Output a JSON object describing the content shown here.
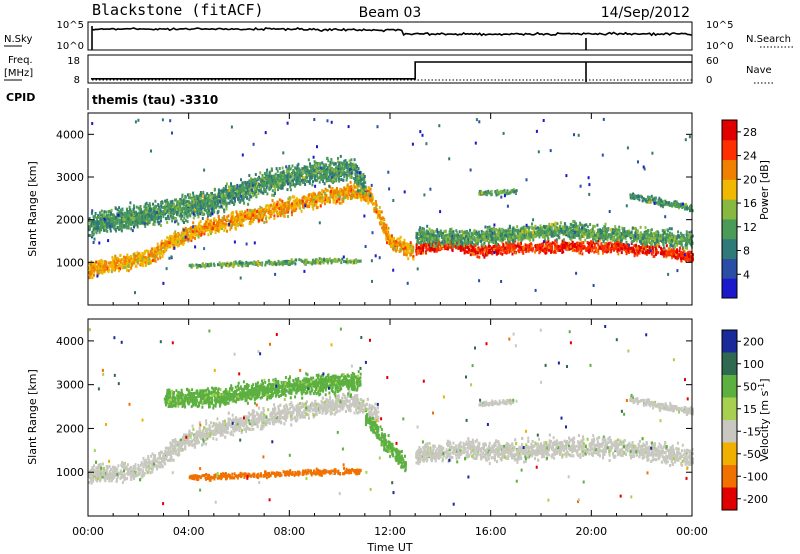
{
  "header": {
    "station": "Blackstone (fitACF)",
    "beam": "Beam 03",
    "date": "14/Sep/2012"
  },
  "top_panel": {
    "nsky_label": "N.Sky",
    "nsky_ticks": [
      "10^5",
      "10^0"
    ],
    "nsearch_label": "N.Search",
    "nsearch_ticks": [
      "10^5",
      "10^0"
    ],
    "freq_label": "Freq.",
    "freq_unit": "[MHz]",
    "freq_ticks": [
      "18",
      "8"
    ],
    "nave_label": "Nave",
    "nave_ticks": [
      "60",
      "0"
    ],
    "cpid_label": "CPID",
    "cpid_value": "themis (tau) -3310",
    "frequency_step_time_hours": 13.0,
    "frequency_before_mhz": 9.5,
    "frequency_after_mhz": 15.5
  },
  "x_axis": {
    "label": "Time UT",
    "ticks": [
      "00:00",
      "04:00",
      "08:00",
      "12:00",
      "16:00",
      "20:00",
      "00:00"
    ],
    "range_hours": [
      0,
      24
    ]
  },
  "chart_data": [
    {
      "type": "heatmap",
      "name": "power",
      "ylabel": "Slant Range [km]",
      "ylim": [
        0,
        4500
      ],
      "yticks": [
        "1000",
        "2000",
        "3000",
        "4000"
      ],
      "xlim_hours": [
        0,
        24
      ],
      "colorbar": {
        "label": "Power [dB]",
        "ticks": [
          "4",
          "8",
          "12",
          "16",
          "20",
          "24",
          "28"
        ],
        "range": [
          0,
          30
        ]
      },
      "bands": [
        {
          "t": [
            0,
            0.3,
            2.5,
            3.2,
            4.2,
            5.0,
            8.0,
            10.5,
            11.2,
            12.0,
            12.9
          ],
          "r": [
            850,
            900,
            1150,
            1500,
            1750,
            1900,
            2350,
            2700,
            2600,
            1500,
            1300
          ],
          "spread": 260,
          "level": 20
        },
        {
          "t": [
            0,
            2.0,
            4.0,
            5.0,
            7.0,
            9.0,
            10.5,
            11.0
          ],
          "r": [
            1900,
            2100,
            2350,
            2450,
            2900,
            3150,
            3200,
            2800
          ],
          "spread": 380,
          "level": 11
        },
        {
          "t": [
            4.0,
            6.0,
            8.0,
            10.0,
            10.8
          ],
          "r": [
            950,
            1000,
            1030,
            1080,
            1050
          ],
          "spread": 80,
          "level": 13
        },
        {
          "t": [
            13.0,
            14.5,
            15.5,
            17.0,
            19.0,
            21.0,
            23.0,
            24.0
          ],
          "r": [
            1350,
            1450,
            1280,
            1380,
            1400,
            1380,
            1280,
            1150
          ],
          "spread": 190,
          "level": 26
        },
        {
          "t": [
            13.0,
            15.0,
            17.0,
            19.0,
            21.0,
            23.0,
            24.0
          ],
          "r": [
            1650,
            1600,
            1700,
            1780,
            1700,
            1600,
            1550
          ],
          "spread": 270,
          "level": 12
        },
        {
          "t": [
            15.5,
            17.0
          ],
          "r": [
            2650,
            2700
          ],
          "spread": 80,
          "level": 12
        },
        {
          "t": [
            21.5,
            24.0
          ],
          "r": [
            2600,
            2300
          ],
          "spread": 120,
          "level": 11
        }
      ]
    },
    {
      "type": "heatmap",
      "name": "velocity",
      "ylabel": "Slant Range [km]",
      "ylim": [
        0,
        4500
      ],
      "yticks": [
        "1000",
        "2000",
        "3000",
        "4000"
      ],
      "xlim_hours": [
        0,
        24
      ],
      "colorbar": {
        "label": "Velocity [m s^-1]",
        "ticks": [
          "200",
          "100",
          "50",
          "15",
          "-15",
          "-50",
          "-100",
          "-200"
        ]
      },
      "bands": [
        {
          "t": [
            0,
            2.0,
            3.0,
            4.0,
            5.0,
            8.0,
            10.5,
            11.5
          ],
          "r": [
            1000,
            1050,
            1400,
            1800,
            2000,
            2400,
            2650,
            2300
          ],
          "spread": 320,
          "level": 0
        },
        {
          "t": [
            3.0,
            5.0,
            7.0,
            9.0,
            10.8
          ],
          "r": [
            2700,
            2750,
            2900,
            3050,
            3100
          ],
          "spread": 300,
          "level": 40
        },
        {
          "t": [
            4.0,
            6.0,
            8.0,
            10.0,
            10.8
          ],
          "r": [
            900,
            950,
            1000,
            1050,
            1050
          ],
          "spread": 90,
          "level": -70
        },
        {
          "t": [
            11.0,
            11.8,
            12.6
          ],
          "r": [
            2300,
            1700,
            1200
          ],
          "spread": 260,
          "level": 40
        },
        {
          "t": [
            13.0,
            15.0,
            17.0,
            19.0,
            21.0,
            23.0,
            24.0
          ],
          "r": [
            1450,
            1550,
            1500,
            1600,
            1600,
            1450,
            1350
          ],
          "spread": 330,
          "level": 0
        },
        {
          "t": [
            15.5,
            17.0
          ],
          "r": [
            2600,
            2650
          ],
          "spread": 80,
          "level": 0
        },
        {
          "t": [
            21.5,
            24.0
          ],
          "r": [
            2700,
            2400
          ],
          "spread": 120,
          "level": 0
        }
      ]
    }
  ],
  "colors": {
    "power_scale": [
      "#1a1acc",
      "#2a4da6",
      "#2f7a78",
      "#4a9a58",
      "#88b840",
      "#f0b800",
      "#f08000",
      "#ff3000",
      "#e00000"
    ],
    "velocity_scale": [
      "#1a2a9a",
      "#2f6a50",
      "#5cb040",
      "#a8d050",
      "#c8c8c0",
      "#f0b000",
      "#f07000",
      "#e00000"
    ]
  }
}
